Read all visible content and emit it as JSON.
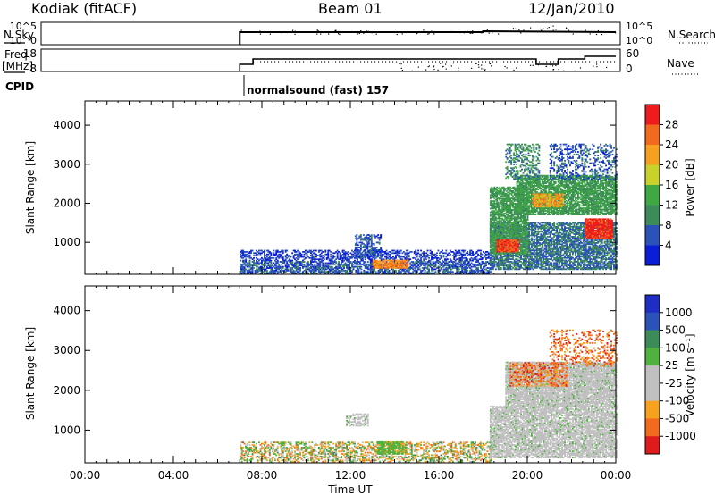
{
  "header": {
    "site": "Kodiak (fitACF)",
    "beam": "Beam 01",
    "date": "12/Jan/2010"
  },
  "strips": {
    "nsky_label": "N.Sky",
    "nsearch_label": "N.Search",
    "freq_label_1": "Freq.",
    "freq_label_2": "[MHz]",
    "nave_label": "Nave",
    "cpid_label": "CPID",
    "cpid_text": "normalsound (fast) 157",
    "nsky_ticks": [
      "10^5",
      "10^0"
    ],
    "nsearch_ticks": [
      "10^5",
      "10^0"
    ],
    "freq_ticks": [
      "18",
      "8"
    ],
    "nave_ticks": [
      "60",
      "0"
    ]
  },
  "colors": {
    "power_scale": [
      "#0a1ed8",
      "#2a52b8",
      "#3c8c5a",
      "#3fa843",
      "#c8d22a",
      "#f5a020",
      "#f26a1e",
      "#ee1c1c"
    ],
    "velocity_scale": [
      "#e01b1b",
      "#f26a1e",
      "#f7a21e",
      "#c0c0c0",
      "#c0c0c0",
      "#4fb23e",
      "#3c8c5a",
      "#2a52b8",
      "#1e2ec2"
    ],
    "ground_scatter": "#c0c0c0"
  },
  "chart_data": [
    {
      "type": "heatmap",
      "name": "power",
      "ylabel": "Slant Range [km]",
      "yticks": [
        1000,
        2000,
        3000,
        4000
      ],
      "ylim": [
        180,
        4620
      ],
      "xlim": [
        0,
        24
      ],
      "colorbar": {
        "label": "Power [dB]",
        "ticks": [
          4,
          8,
          12,
          16,
          20,
          24,
          28
        ],
        "range": [
          0,
          32
        ]
      },
      "regions": [
        {
          "t": [
            7.0,
            18.4
          ],
          "r": [
            200,
            800
          ],
          "level": 4,
          "density": 0.45
        },
        {
          "t": [
            7.0,
            18.4
          ],
          "r": [
            200,
            500
          ],
          "level": 8,
          "density": 0.25
        },
        {
          "t": [
            13.0,
            14.6
          ],
          "r": [
            330,
            550
          ],
          "level": 24,
          "density": 0.85
        },
        {
          "t": [
            12.2,
            13.4
          ],
          "r": [
            600,
            1200
          ],
          "level": 6,
          "density": 0.5
        },
        {
          "t": [
            18.3,
            24.0
          ],
          "r": [
            300,
            1500
          ],
          "level": 8,
          "density": 0.7
        },
        {
          "t": [
            18.3,
            20.0
          ],
          "r": [
            700,
            2400
          ],
          "level": 12,
          "density": 0.75
        },
        {
          "t": [
            18.6,
            19.6
          ],
          "r": [
            750,
            1050
          ],
          "level": 28,
          "density": 0.9
        },
        {
          "t": [
            19.5,
            24.0
          ],
          "r": [
            1700,
            2700
          ],
          "level": 12,
          "density": 0.8
        },
        {
          "t": [
            20.2,
            21.6
          ],
          "r": [
            1900,
            2250
          ],
          "level": 22,
          "density": 0.7
        },
        {
          "t": [
            22.6,
            23.8
          ],
          "r": [
            1100,
            1600
          ],
          "level": 30,
          "density": 0.9
        },
        {
          "t": [
            21.0,
            24.0
          ],
          "r": [
            2600,
            3500
          ],
          "level": 6,
          "density": 0.3
        },
        {
          "t": [
            19.0,
            20.5
          ],
          "r": [
            2600,
            3500
          ],
          "level": 10,
          "density": 0.35
        }
      ]
    },
    {
      "type": "heatmap",
      "name": "velocity",
      "ylabel": "Slant Range [km]",
      "xlabel": "Time UT",
      "xticks": [
        "00:00",
        "04:00",
        "08:00",
        "12:00",
        "16:00",
        "20:00",
        "00:00"
      ],
      "xtick_values": [
        0,
        4,
        8,
        12,
        16,
        20,
        24
      ],
      "yticks": [
        1000,
        2000,
        3000,
        4000
      ],
      "ylim": [
        180,
        4620
      ],
      "xlim": [
        0,
        24
      ],
      "colorbar": {
        "label": "Velocity [m s⁻¹]",
        "ticks": [
          "1000",
          "500",
          "100",
          "25",
          "-25",
          "-100",
          "-500",
          "-1000"
        ]
      },
      "regions": [
        {
          "t": [
            7.0,
            18.4
          ],
          "r": [
            200,
            700
          ],
          "class": "mixed",
          "density": 0.45
        },
        {
          "t": [
            13.2,
            14.5
          ],
          "r": [
            400,
            700
          ],
          "class": "green",
          "density": 0.8
        },
        {
          "t": [
            11.8,
            12.8
          ],
          "r": [
            1100,
            1400
          ],
          "class": "ground",
          "density": 0.5
        },
        {
          "t": [
            18.3,
            24.0
          ],
          "r": [
            300,
            1600
          ],
          "class": "ground",
          "density": 0.75
        },
        {
          "t": [
            19.0,
            24.0
          ],
          "r": [
            1600,
            2700
          ],
          "class": "ground",
          "density": 0.85
        },
        {
          "t": [
            19.2,
            21.8
          ],
          "r": [
            2100,
            2700
          ],
          "class": "orange",
          "density": 0.35
        },
        {
          "t": [
            21.0,
            24.0
          ],
          "r": [
            2600,
            3500
          ],
          "class": "orange",
          "density": 0.25
        }
      ]
    }
  ]
}
